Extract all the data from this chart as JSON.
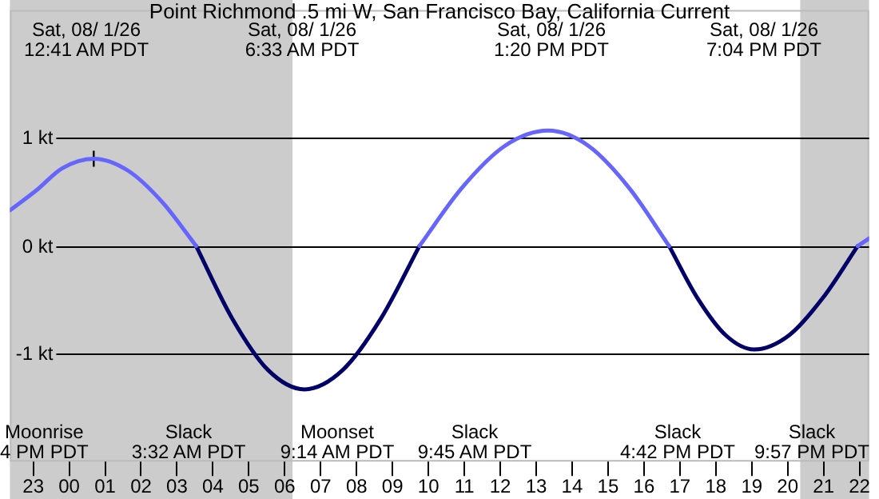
{
  "chart_data": {
    "type": "line",
    "title": "Point Richmond .5 mi W, San Francisco Bay, California Current",
    "x": [
      "--07-31T22:21",
      "--07-31T23:06",
      "--07-31T23:48",
      "--08-01T00:41",
      "--08-01T01:38",
      "--08-01T02:35",
      "--08-01T03:32",
      "--08-01T04:32",
      "--08-01T05:32",
      "--08-01T06:33",
      "--08-01T07:37",
      "--08-01T08:41",
      "--08-01T09:45",
      "--08-01T10:56",
      "--08-01T12:08",
      "--08-01T13:20",
      "--08-01T14:27",
      "--08-01T15:35",
      "--08-01T16:42",
      "--08-01T17:29",
      "--08-01T18:17",
      "--08-01T19:04",
      "--08-01T20:02",
      "--08-01T20:59",
      "--08-01T21:57",
      "--08-01T22:16"
    ],
    "series": [
      {
        "color": "#6666ff",
        "values": [
          0.33,
          0.52,
          0.72,
          0.81,
          0.7,
          0.41,
          0,
          null,
          null,
          null,
          null,
          null,
          0,
          0.54,
          0.93,
          1.07,
          0.93,
          0.54,
          0,
          null,
          null,
          null,
          null,
          null,
          0,
          0.07
        ]
      },
      {
        "color": "#000066",
        "values": [
          null,
          null,
          null,
          null,
          null,
          null,
          0,
          -0.67,
          -1.15,
          -1.33,
          -1.15,
          -0.67,
          0,
          null,
          null,
          null,
          null,
          null,
          0,
          -0.48,
          -0.83,
          -0.96,
          -0.83,
          -0.48,
          0,
          null
        ]
      },
      {
        "type": "scatter",
        "marker": "cross",
        "color": "#000000",
        "x": [
          "--08-01T00:41"
        ],
        "values": [
          0.81
        ]
      }
    ],
    "xlim": [
      "--07-31T22:21",
      "--08-01T22:16"
    ],
    "xticks": [
      {
        "value": "--07-31T23:00",
        "label": "23"
      },
      {
        "value": "--08-01T00:00",
        "label": "00"
      },
      {
        "value": "--08-01T01:00",
        "label": "01"
      },
      {
        "value": "--08-01T02:00",
        "label": "02"
      },
      {
        "value": "--08-01T03:00",
        "label": "03"
      },
      {
        "value": "--08-01T04:00",
        "label": "04"
      },
      {
        "value": "--08-01T05:00",
        "label": "05"
      },
      {
        "value": "--08-01T06:00",
        "label": "06"
      },
      {
        "value": "--08-01T07:00",
        "label": "07"
      },
      {
        "value": "--08-01T08:00",
        "label": "08"
      },
      {
        "value": "--08-01T09:00",
        "label": "09"
      },
      {
        "value": "--08-01T10:00",
        "label": "10"
      },
      {
        "value": "--08-01T11:00",
        "label": "11"
      },
      {
        "value": "--08-01T12:00",
        "label": "12"
      },
      {
        "value": "--08-01T13:00",
        "label": "13"
      },
      {
        "value": "--08-01T14:00",
        "label": "14"
      },
      {
        "value": "--08-01T15:00",
        "label": "15"
      },
      {
        "value": "--08-01T16:00",
        "label": "16"
      },
      {
        "value": "--08-01T17:00",
        "label": "17"
      },
      {
        "value": "--08-01T18:00",
        "label": "18"
      },
      {
        "value": "--08-01T19:00",
        "label": "19"
      },
      {
        "value": "--08-01T20:00",
        "label": "20"
      },
      {
        "value": "--08-01T21:00",
        "label": "21"
      },
      {
        "value": "--08-01T22:00",
        "label": "22"
      }
    ],
    "ylim": [
      -2,
      2.19
    ],
    "yticks": [
      {
        "value": 1,
        "label": "1 kt"
      },
      {
        "value": 0,
        "label": "0 kt"
      },
      {
        "value": -1,
        "label": "-1 kt"
      }
    ],
    "grid": "y",
    "legend": false,
    "bands": [
      {
        "axis": "x",
        "from": "--07-31T22:21",
        "to": "--08-01T06:13",
        "color": "#cccccc"
      },
      {
        "axis": "x",
        "from": "--08-01T20:21",
        "to": "--08-01T22:16",
        "color": "#cccccc"
      }
    ],
    "annotations": [
      "Sat, 08/ 1/26\n12:41 AM PDT",
      "Sat, 08/ 1/26\n6:33 AM PDT",
      "Sat, 08/ 1/26\n1:20 PM PDT",
      "Sat, 08/ 1/26\n7:04 PM PDT",
      "Moonrise\n4 PM PDT",
      "Slack\n3:32 AM PDT",
      "Moonset\n9:14 AM PDT",
      "Slack\n9:45 AM PDT",
      "Slack\n4:42 PM PDT",
      "Slack\n9:57 PM PDT"
    ]
  }
}
